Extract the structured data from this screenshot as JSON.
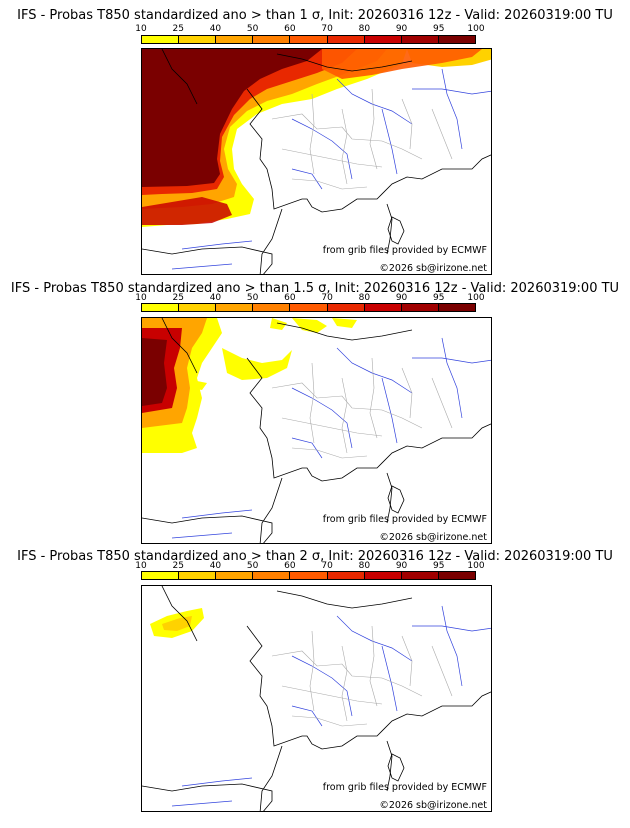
{
  "scale": {
    "labels": [
      "10",
      "25",
      "40",
      "50",
      "60",
      "70",
      "80",
      "90",
      "95",
      "100"
    ],
    "colors": [
      "#ffff00",
      "#ffd200",
      "#ffa500",
      "#ff8000",
      "#ff5a00",
      "#e82800",
      "#c80000",
      "#a00000",
      "#7a0000"
    ]
  },
  "panels": [
    {
      "title": "IFS - Probas T850  standardized ano > than 1 σ, Init: 20260316 12z - Valid: 20260319:00 TU",
      "source": "from grib files provided by ECMWF",
      "copyright": "©2026 sb@irizone.net"
    },
    {
      "title": "IFS - Probas T850  standardized ano > than 1.5 σ, Init: 20260316 12z - Valid: 20260319:00 TU",
      "source": "from grib files provided by ECMWF",
      "copyright": "©2026 sb@irizone.net"
    },
    {
      "title": "IFS - Probas T850  standardized ano > than 2 σ, Init: 20260316 12z - Valid: 20260319:00 TU",
      "source": "from grib files provided by ECMWF",
      "copyright": "©2026 sb@irizone.net"
    }
  ]
}
